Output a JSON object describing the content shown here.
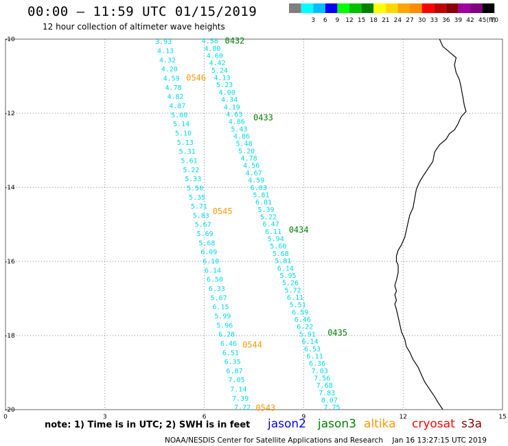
{
  "header": {
    "title": "00:00 – 11:59 UTC 01/15/2019",
    "subtitle": "12 hour collection of altimeter wave heights"
  },
  "color_scale": {
    "unit": "(ft)",
    "bins": [
      {
        "label": "",
        "color": "#7f7f7f"
      },
      {
        "label": "3",
        "color": "#00ffff"
      },
      {
        "label": "6",
        "color": "#00bfff"
      },
      {
        "label": "9",
        "color": "#0000ff"
      },
      {
        "label": "12",
        "color": "#00ff00"
      },
      {
        "label": "15",
        "color": "#00c000"
      },
      {
        "label": "18",
        "color": "#008000"
      },
      {
        "label": "21",
        "color": "#ffff00"
      },
      {
        "label": "24",
        "color": "#ffd700"
      },
      {
        "label": "27",
        "color": "#ffa500"
      },
      {
        "label": "30",
        "color": "#ff8c00"
      },
      {
        "label": "33",
        "color": "#ff0000"
      },
      {
        "label": "36",
        "color": "#c00000"
      },
      {
        "label": "39",
        "color": "#8b0000"
      },
      {
        "label": "42",
        "color": "#a000a0"
      },
      {
        "label": "45",
        "color": "#800080"
      },
      {
        "label": "70",
        "color": "#000000"
      }
    ]
  },
  "axes": {
    "x_ticks": [
      "0",
      "3",
      "6",
      "9",
      "12",
      "15"
    ],
    "y_ticks": [
      "-10",
      "-12",
      "-14",
      "-16",
      "-18",
      "-20"
    ],
    "x_range": [
      0,
      15
    ],
    "y_range": [
      -20,
      -10
    ],
    "grid": "dotted"
  },
  "tracks": [
    {
      "satellite": "jason3-a",
      "values": [
        "3.93",
        "4.13",
        "4.32",
        "4.20",
        "4.59",
        "4.78",
        "4.82",
        "4.87",
        "5.00",
        "5.14",
        "5.10",
        "5.13",
        "5.31",
        "5.61",
        "5.22",
        "5.33",
        "5.50",
        "5.35",
        "5.71",
        "5.83",
        "5.67",
        "5.69",
        "5.68",
        "6.09",
        "6.10",
        "6.14",
        "6.50",
        "6.33",
        "5.67",
        "6.15",
        "5.99",
        "5.96",
        "6.28",
        "6.46",
        "6.51",
        "6.35",
        "6.87",
        "7.05",
        "7.14",
        "7.39",
        "7.72"
      ],
      "start": [
        4.77,
        -10.06
      ],
      "end": [
        7.15,
        -19.93
      ]
    },
    {
      "satellite": "jason3-b",
      "values": [
        "4.58",
        "4.80",
        "4.60",
        "4.42",
        "5.24",
        "4.13",
        "5.23",
        "4.00",
        "4.34",
        "4.19",
        "4.63",
        "4.86",
        "5.43",
        "4.86",
        "5.48",
        "5.20",
        "4.78",
        "4.56",
        "4.67",
        "4.59",
        "6.03",
        "5.81",
        "6.81",
        "5.39",
        "5.22",
        "6.47",
        "6.11",
        "5.94",
        "5.60",
        "5.68",
        "5.81",
        "6.14",
        "5.95",
        "5.26",
        "5.72",
        "6.11",
        "5.51",
        "6.59",
        "6.46",
        "6.22",
        "5.91",
        "6.14",
        "6.53",
        "6.11",
        "6.36",
        "7.03",
        "7.56",
        "7.68",
        "7.83",
        "8.07",
        "7.75"
      ],
      "start": [
        6.17,
        -10.04
      ],
      "end": [
        9.85,
        -19.93
      ]
    }
  ],
  "pass_labels": [
    {
      "text": "0432",
      "lon": 6.62,
      "lat": -10.05,
      "color": "#008000"
    },
    {
      "text": "0546",
      "lon": 5.45,
      "lat": -11.05,
      "color": "#ff9900"
    },
    {
      "text": "0433",
      "lon": 7.48,
      "lat": -12.12,
      "color": "#008000"
    },
    {
      "text": "0545",
      "lon": 6.25,
      "lat": -14.65,
      "color": "#ff9900"
    },
    {
      "text": "0434",
      "lon": 8.55,
      "lat": -15.15,
      "color": "#008000"
    },
    {
      "text": "0544",
      "lon": 7.15,
      "lat": -18.25,
      "color": "#ff9900"
    },
    {
      "text": "0435",
      "lon": 9.72,
      "lat": -17.93,
      "color": "#008000"
    },
    {
      "text": "0543",
      "lon": 7.55,
      "lat": -19.95,
      "color": "#ff9900"
    }
  ],
  "footer": {
    "note": "note: 1) Time is in UTC; 2) SWH is in feet",
    "satellites": [
      {
        "name": "jason2",
        "color": "#0000ff"
      },
      {
        "name": "jason3",
        "color": "#008000"
      },
      {
        "name": "altika",
        "color": "#ff9900"
      },
      {
        "name": "cryosat",
        "color": "#ff0000"
      },
      {
        "name": "s3a",
        "color": "#8b0000"
      }
    ],
    "credit": "NOAA/NESDIS Center for Satellite Applications and Research    Jan 16 13:27:15 UTC 2019"
  },
  "colors": {
    "swh_text": "#00d7e6",
    "coastline": "#000000"
  },
  "coastline_lonlat": [
    [
      13.1,
      -10.0
    ],
    [
      13.2,
      -10.2
    ],
    [
      13.4,
      -10.35
    ],
    [
      13.6,
      -10.5
    ],
    [
      13.55,
      -10.7
    ],
    [
      13.6,
      -10.9
    ],
    [
      13.7,
      -11.1
    ],
    [
      13.75,
      -11.3
    ],
    [
      13.8,
      -11.55
    ],
    [
      13.85,
      -11.8
    ],
    [
      13.9,
      -11.95
    ],
    [
      13.75,
      -12.1
    ],
    [
      13.65,
      -12.3
    ],
    [
      13.55,
      -12.45
    ],
    [
      13.4,
      -12.55
    ],
    [
      13.3,
      -12.7
    ],
    [
      13.1,
      -12.85
    ],
    [
      12.95,
      -13.05
    ],
    [
      12.9,
      -13.3
    ],
    [
      12.75,
      -13.5
    ],
    [
      12.6,
      -13.7
    ],
    [
      12.5,
      -13.85
    ],
    [
      12.4,
      -14.05
    ],
    [
      12.35,
      -14.3
    ],
    [
      12.3,
      -14.55
    ],
    [
      12.2,
      -14.75
    ],
    [
      12.15,
      -14.95
    ],
    [
      12.1,
      -15.15
    ],
    [
      12.05,
      -15.35
    ],
    [
      11.95,
      -15.55
    ],
    [
      11.85,
      -15.7
    ],
    [
      11.8,
      -15.85
    ],
    [
      11.8,
      -16.0
    ],
    [
      11.85,
      -16.1
    ],
    [
      11.85,
      -16.3
    ],
    [
      11.8,
      -16.5
    ],
    [
      11.75,
      -16.65
    ],
    [
      11.8,
      -16.8
    ],
    [
      11.75,
      -16.9
    ],
    [
      11.8,
      -17.05
    ],
    [
      11.75,
      -17.15
    ],
    [
      11.8,
      -17.3
    ],
    [
      11.85,
      -17.5
    ],
    [
      11.9,
      -17.7
    ],
    [
      11.95,
      -17.9
    ],
    [
      12.05,
      -18.1
    ],
    [
      12.1,
      -18.3
    ],
    [
      12.2,
      -18.45
    ],
    [
      12.3,
      -18.65
    ],
    [
      12.45,
      -18.85
    ],
    [
      12.55,
      -19.05
    ],
    [
      12.65,
      -19.25
    ],
    [
      12.8,
      -19.45
    ],
    [
      12.95,
      -19.65
    ],
    [
      13.05,
      -19.8
    ],
    [
      13.2,
      -20.0
    ]
  ]
}
